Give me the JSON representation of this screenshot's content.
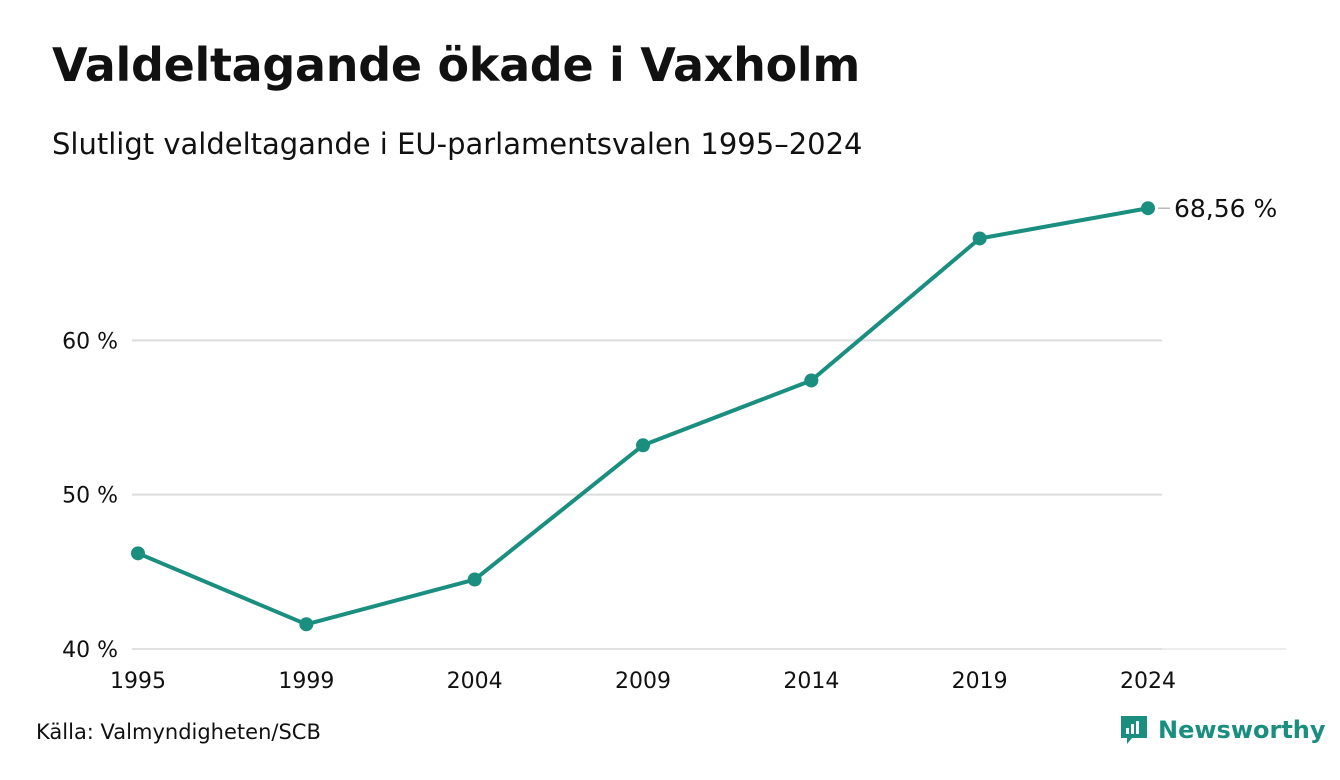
{
  "header": {
    "title": "Valdeltagande ökade i Vaxholm",
    "subtitle": "Slutligt valdeltagande i EU-parlamentsvalen 1995–2024"
  },
  "footer": {
    "source": "Källa: Valmyndigheten/SCB",
    "brand": "Newsworthy"
  },
  "colors": {
    "line": "#1a8f80",
    "grid": "#dddddd",
    "text": "#111111"
  },
  "chart_data": {
    "type": "line",
    "x": [
      "1995",
      "1999",
      "2004",
      "2009",
      "2014",
      "2019",
      "2024"
    ],
    "series": [
      {
        "values": [
          46.2,
          41.6,
          44.5,
          53.2,
          57.4,
          66.6,
          68.56
        ]
      }
    ],
    "ylim": [
      40,
      70
    ],
    "yticks": [
      40,
      50,
      60
    ],
    "ytick_labels": [
      "40 %",
      "50 %",
      "60 %"
    ],
    "grid": true,
    "end_label": "68,56 %"
  }
}
